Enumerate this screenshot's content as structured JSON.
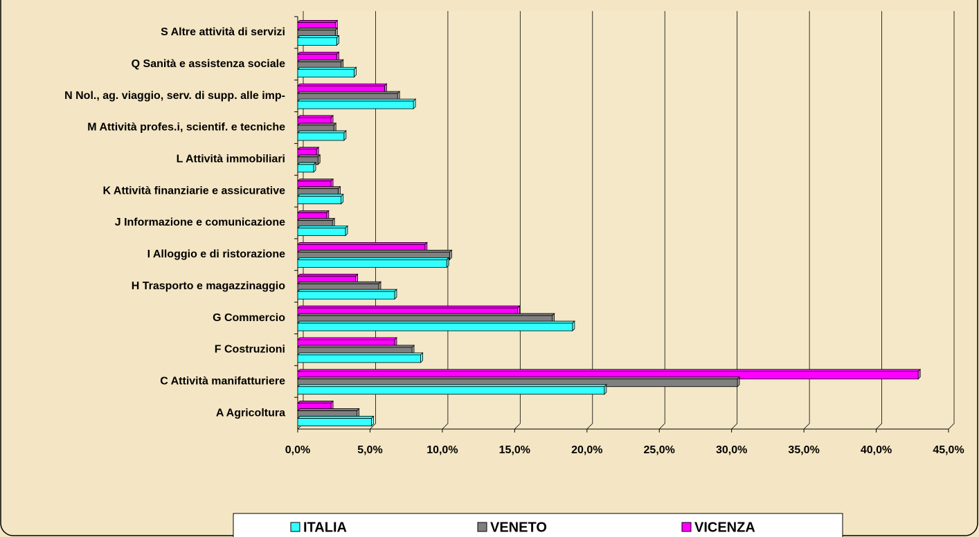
{
  "chart_data": {
    "type": "bar",
    "orientation": "horizontal",
    "categories": [
      "S Altre attività di servizi",
      "Q Sanità e assistenza sociale",
      "N Nol., ag. viaggio, serv. di supp. alle imp-",
      "M Attività profes.i, scientif. e tecniche",
      "L Attività immobiliari",
      "K Attività finanziarie e assicurative",
      "J Informazione e comunicazione",
      "I Alloggio e di ristorazione",
      "H Trasporto e magazzinaggio",
      "G Commercio",
      "F Costruzioni",
      "C Attività manifatturiere",
      "A Agricoltura"
    ],
    "series": [
      {
        "name": "ITALIA",
        "color": "#33ffff",
        "values": [
          2.7,
          3.9,
          8.0,
          3.2,
          1.1,
          3.0,
          3.3,
          10.3,
          6.7,
          19.0,
          8.5,
          21.2,
          5.1
        ]
      },
      {
        "name": "VENETO",
        "color": "#808080",
        "values": [
          2.6,
          3.0,
          6.9,
          2.5,
          1.4,
          2.8,
          2.4,
          10.5,
          5.6,
          17.6,
          7.9,
          30.4,
          4.1
        ]
      },
      {
        "name": "VICENZA",
        "color": "#ff00ff",
        "values": [
          2.6,
          2.7,
          6.0,
          2.3,
          1.3,
          2.3,
          2.0,
          8.8,
          4.0,
          15.2,
          6.7,
          42.9,
          2.3
        ]
      }
    ],
    "xlim": [
      0,
      45
    ],
    "xticks": [
      {
        "value": 0,
        "label": "0,0%"
      },
      {
        "value": 5,
        "label": "5,0%"
      },
      {
        "value": 10,
        "label": "10,0%"
      },
      {
        "value": 15,
        "label": "15,0%"
      },
      {
        "value": 20,
        "label": "20,0%"
      },
      {
        "value": 25,
        "label": "25,0%"
      },
      {
        "value": 30,
        "label": "30,0%"
      },
      {
        "value": 35,
        "label": "35,0%"
      },
      {
        "value": 40,
        "label": "40,0%"
      },
      {
        "value": 45,
        "label": "45,0%"
      }
    ],
    "grid": true,
    "legend": "bottom"
  }
}
